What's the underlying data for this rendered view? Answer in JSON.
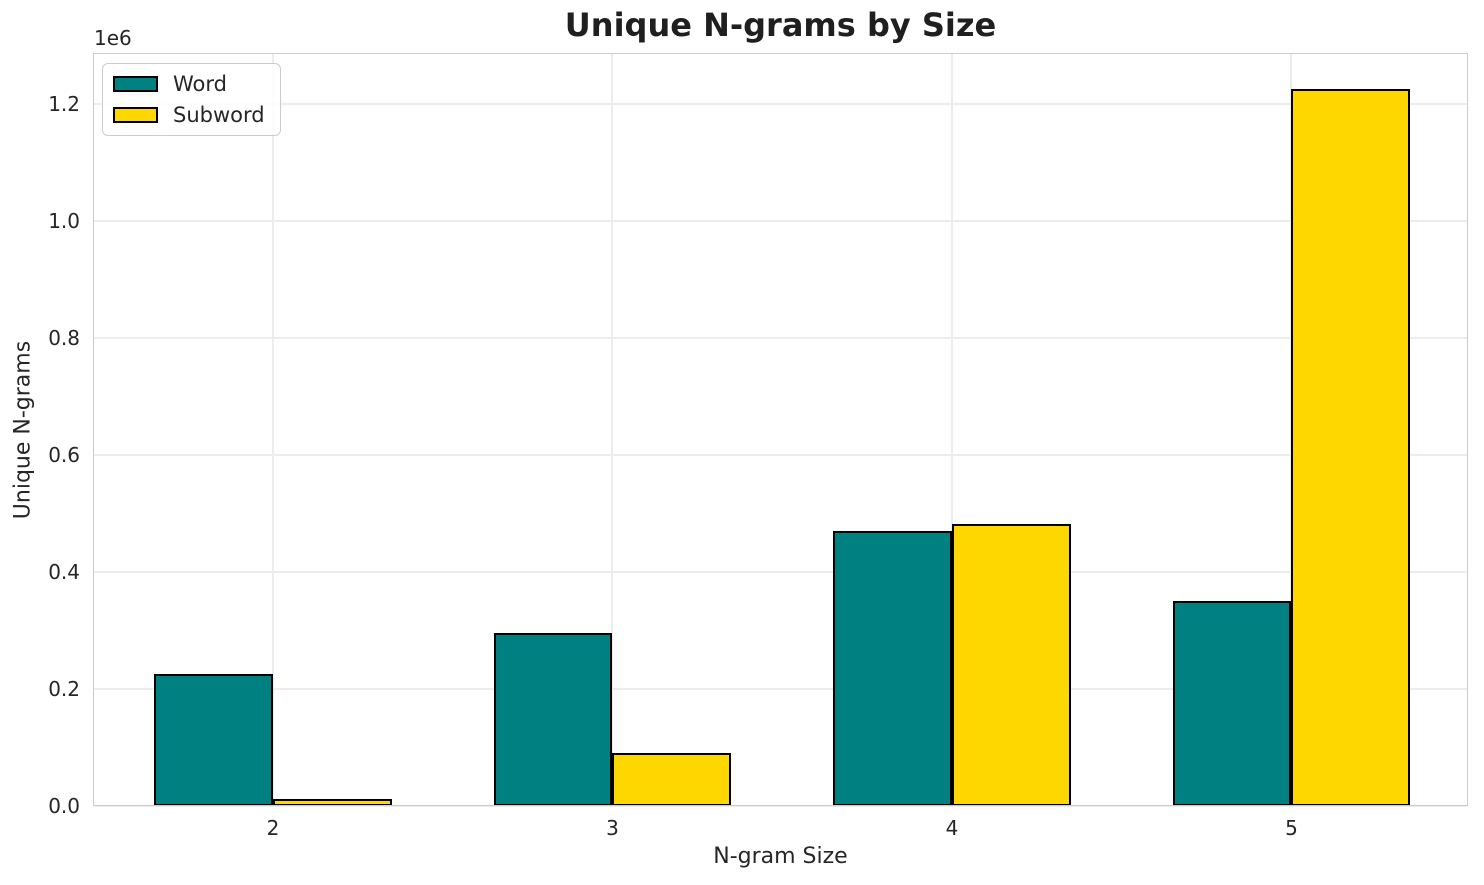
{
  "chart_data": {
    "type": "bar",
    "title": "Unique N-grams by Size",
    "xlabel": "N-gram Size",
    "ylabel": "Unique N-grams",
    "categories": [
      2,
      3,
      4,
      5
    ],
    "xtick_labels": [
      "2",
      "3",
      "4",
      "5"
    ],
    "series": [
      {
        "name": "Word",
        "color": "#008080",
        "values": [
          225000,
          296000,
          471000,
          351000
        ]
      },
      {
        "name": "Subword",
        "color": "#FFD700",
        "values": [
          11500,
          91000,
          482000,
          1227000
        ]
      }
    ],
    "bar_width": 0.35,
    "bar_edge_color": "#000000",
    "xlim": [
      1.47,
      5.52
    ],
    "ylim": [
      0,
      1288000
    ],
    "yticks": [
      0,
      200000,
      400000,
      600000,
      800000,
      1000000,
      1200000
    ],
    "ytick_labels": [
      "0.0",
      "0.2",
      "0.4",
      "0.6",
      "0.8",
      "1.0",
      "1.2"
    ],
    "y_offset_label": "1e6",
    "grid": true,
    "legend": {
      "position": "upper left",
      "entries": [
        "Word",
        "Subword"
      ]
    },
    "colors": {
      "background": "#ffffff",
      "grid": "#ececec",
      "spine": "#cccccc",
      "text": "#262626",
      "title": "#1f1f1f"
    }
  }
}
